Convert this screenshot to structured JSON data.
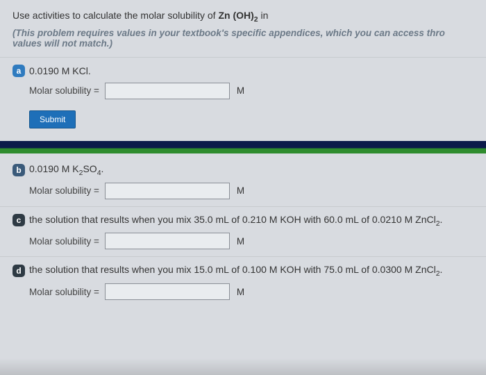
{
  "intro": {
    "prefix": "Use activities to calculate the molar solubility of ",
    "compound_html": "Zn (OH)<sub>2</sub>",
    "suffix": " in"
  },
  "note": "(This problem requires values in your textbook's specific appendices, which you can access thro\nvalues will not match.)",
  "labels": {
    "molar_solubility": "Molar solubility =",
    "unit": "M",
    "submit": "Submit"
  },
  "parts": {
    "a": {
      "letter": "a",
      "prompt_html": "0.0190 M KCl."
    },
    "b": {
      "letter": "b",
      "prompt_html": "0.0190 M K<sub>2</sub>SO<sub>4</sub>."
    },
    "c": {
      "letter": "c",
      "prompt_html": "the solution that results when you mix 35.0 mL of 0.210 M KOH with 60.0 mL of 0.0210 M ZnCl<sub>2</sub>."
    },
    "d": {
      "letter": "d",
      "prompt_html": "the solution that results when you mix 15.0 mL of 0.100 M KOH with 75.0 mL of 0.0300 M ZnCl<sub>2</sub>."
    }
  }
}
